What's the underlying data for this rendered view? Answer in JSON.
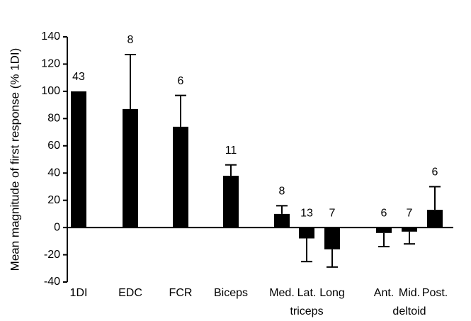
{
  "chart_data": {
    "type": "bar",
    "y_label": "Mean magnitude of first response (% 1DI)",
    "categories": [
      "1DI",
      "EDC",
      "FCR",
      "Biceps",
      "Med.",
      "Lat.",
      "Long",
      "Ant.",
      "Mid.",
      "Post."
    ],
    "values": [
      100,
      87,
      74,
      38,
      10,
      -8,
      -16,
      -4,
      -3,
      13
    ],
    "errors": [
      0,
      40,
      23,
      8,
      6,
      17,
      13,
      10,
      9,
      17
    ],
    "counts": [
      43,
      8,
      6,
      11,
      8,
      13,
      7,
      6,
      7,
      6
    ],
    "group_labels": [
      "triceps",
      "deltoid"
    ],
    "color": "#000000",
    "ylim": [
      -40,
      140
    ],
    "yticks": [
      -40,
      -20,
      0,
      20,
      40,
      60,
      80,
      100,
      120,
      140
    ]
  }
}
